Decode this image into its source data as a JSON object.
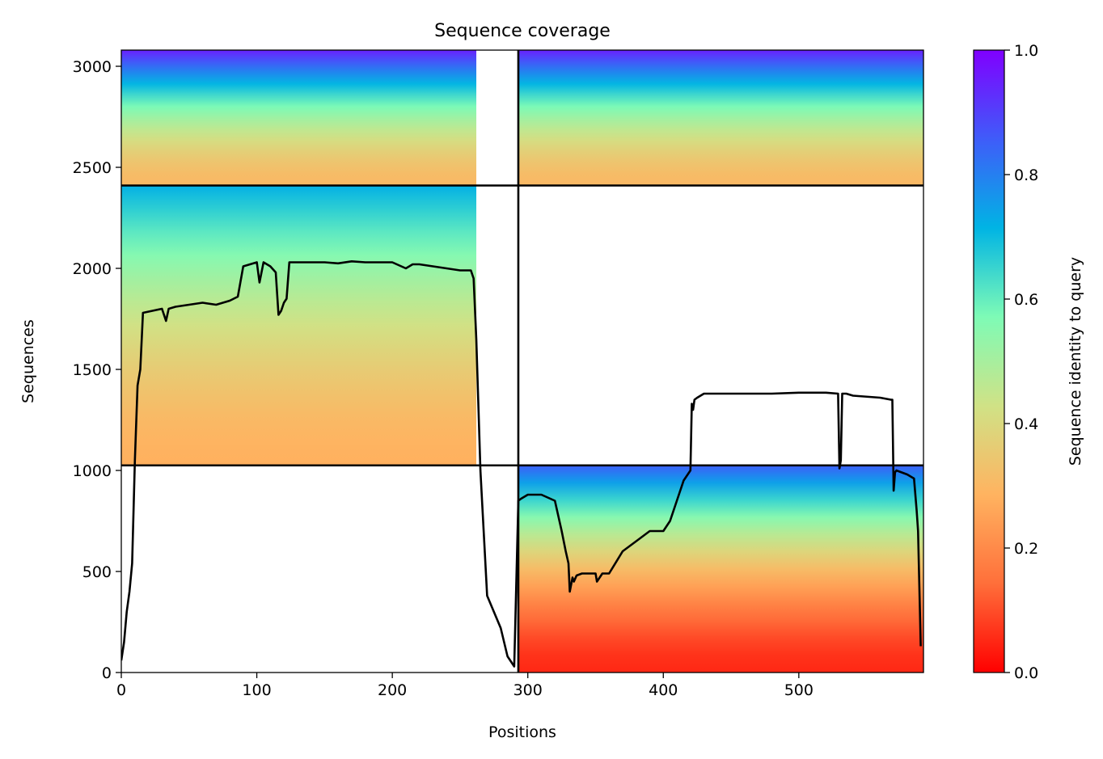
{
  "chart_data": {
    "type": "heatmap",
    "title": "Sequence coverage",
    "xlabel": "Positions",
    "ylabel": "Sequences",
    "xlim": [
      0,
      592
    ],
    "ylim": [
      0,
      3080
    ],
    "x_ticks": [
      0,
      100,
      200,
      300,
      400,
      500
    ],
    "y_ticks": [
      0,
      500,
      1000,
      1500,
      2000,
      2500,
      3000
    ],
    "x_tick_labels": [
      "0",
      "100",
      "200",
      "300",
      "400",
      "500"
    ],
    "y_tick_labels": [
      "0",
      "500",
      "1000",
      "1500",
      "2000",
      "2500",
      "3000"
    ],
    "colorbar": {
      "label": "Sequence identity to query",
      "range": [
        0,
        1
      ],
      "ticks": [
        0,
        0.2,
        0.4,
        0.6,
        0.8,
        1.0
      ],
      "tick_labels": [
        "0.0",
        "0.2",
        "0.4",
        "0.6",
        "0.8",
        "1.0"
      ],
      "colormap": "rainbow",
      "colors": [
        "#ff0000",
        "#ff6f3a",
        "#ffb360",
        "#d0e286",
        "#7efbb6",
        "#00b4e4",
        "#3f5cf9",
        "#8000ff"
      ]
    },
    "boundaries": {
      "x_split": 293,
      "y_splits": [
        1025,
        2410
      ]
    },
    "blocks": [
      {
        "x": [
          0,
          262
        ],
        "y": [
          2410,
          3080
        ],
        "identity": [
          0.3,
          0.95
        ]
      },
      {
        "x": [
          293,
          592
        ],
        "y": [
          2410,
          3080
        ],
        "identity": [
          0.3,
          0.95
        ]
      },
      {
        "x": [
          0,
          262
        ],
        "y": [
          1025,
          2410
        ],
        "identity": [
          0.28,
          0.72
        ]
      },
      {
        "x": [
          293,
          592
        ],
        "y": [
          0,
          1025
        ],
        "identity": [
          0.05,
          0.85
        ]
      }
    ],
    "series": [
      {
        "type": "line",
        "color": "#000000",
        "x": [
          0,
          2,
          4,
          6,
          8,
          10,
          12,
          14,
          16,
          30,
          33,
          35,
          40,
          50,
          60,
          70,
          80,
          86,
          90,
          100,
          102,
          105,
          110,
          114,
          116,
          118,
          120,
          122,
          124,
          130,
          150,
          160,
          170,
          180,
          190,
          200,
          210,
          215,
          220,
          240,
          250,
          258,
          260,
          262,
          265,
          270,
          275,
          280,
          285,
          290,
          293,
          295,
          300,
          310,
          320,
          325,
          328,
          330,
          331,
          333,
          334,
          336,
          340,
          350,
          351,
          355,
          360,
          370,
          380,
          390,
          400,
          405,
          410,
          415,
          420,
          421,
          422,
          423,
          425,
          430,
          450,
          480,
          500,
          520,
          529,
          530,
          531,
          532,
          533,
          535,
          540,
          560,
          568,
          569,
          570,
          571,
          572,
          580,
          585,
          587,
          588,
          590
        ],
        "y": [
          60,
          150,
          300,
          400,
          540,
          1050,
          1420,
          1500,
          1780,
          1800,
          1740,
          1800,
          1810,
          1820,
          1830,
          1820,
          1840,
          1860,
          2010,
          2030,
          1930,
          2030,
          2010,
          1980,
          1770,
          1790,
          1830,
          1850,
          2030,
          2030,
          2030,
          2025,
          2035,
          2030,
          2030,
          2030,
          2000,
          2020,
          2020,
          2000,
          1990,
          1990,
          1950,
          1650,
          1000,
          380,
          300,
          220,
          80,
          30,
          850,
          860,
          880,
          880,
          850,
          700,
          600,
          540,
          400,
          470,
          450,
          480,
          490,
          490,
          450,
          490,
          490,
          600,
          650,
          700,
          700,
          750,
          850,
          950,
          1000,
          1330,
          1300,
          1350,
          1360,
          1380,
          1380,
          1380,
          1385,
          1385,
          1380,
          1010,
          1050,
          1380,
          1380,
          1380,
          1370,
          1360,
          1350,
          1350,
          900,
          990,
          1000,
          980,
          960,
          800,
          700,
          130
        ]
      }
    ]
  }
}
